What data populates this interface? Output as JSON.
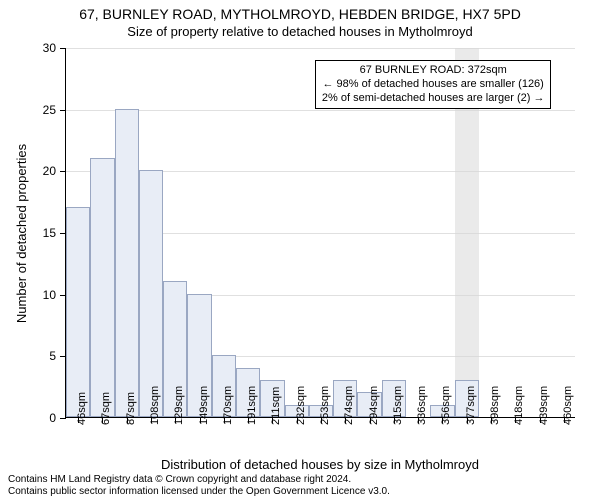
{
  "title_main": "67, BURNLEY ROAD, MYTHOLMROYD, HEBDEN BRIDGE, HX7 5PD",
  "title_sub": "Size of property relative to detached houses in Mytholmroyd",
  "y_axis_label": "Number of detached properties",
  "x_axis_label": "Distribution of detached houses by size in Mytholmroyd",
  "footer_line1": "Contains HM Land Registry data © Crown copyright and database right 2024.",
  "footer_line2": "Contains public sector information licensed under the Open Government Licence v3.0.",
  "chart": {
    "type": "histogram",
    "ylim": [
      0,
      30
    ],
    "ytick_step": 5,
    "x_labels": [
      "46sqm",
      "67sqm",
      "87sqm",
      "108sqm",
      "129sqm",
      "149sqm",
      "170sqm",
      "191sqm",
      "211sqm",
      "232sqm",
      "253sqm",
      "274sqm",
      "294sqm",
      "315sqm",
      "336sqm",
      "356sqm",
      "377sqm",
      "398sqm",
      "418sqm",
      "439sqm",
      "460sqm"
    ],
    "values": [
      17,
      21,
      25,
      20,
      11,
      10,
      5,
      4,
      3,
      1,
      1,
      3,
      2,
      3,
      0,
      1,
      3,
      0,
      0,
      0,
      0
    ],
    "bar_fill": "#e8edf6",
    "bar_stroke": "#9aa7c2",
    "grid_color": "#e0e0e0",
    "background_color": "#ffffff",
    "axis_color": "#000000",
    "highlight_index": 16,
    "highlight_color": "#d6d6d6",
    "bar_width_ratio": 1.0
  },
  "annotation": {
    "line1": "67 BURNLEY ROAD: 372sqm",
    "line2": "← 98% of detached houses are smaller (126)",
    "line3": "2% of semi-detached houses are larger (2) →"
  }
}
